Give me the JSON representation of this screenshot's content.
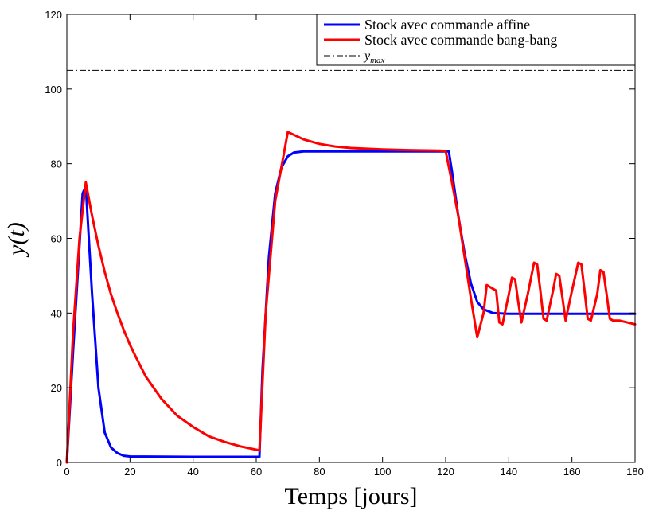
{
  "chart_data": {
    "type": "line",
    "xlabel": "Temps [jours]",
    "ylabel": "y(t)",
    "xlim": [
      0,
      180
    ],
    "ylim": [
      0,
      120
    ],
    "x_ticks": [
      0,
      20,
      40,
      60,
      80,
      100,
      120,
      140,
      160,
      180
    ],
    "y_ticks": [
      0,
      20,
      40,
      60,
      80,
      100,
      120
    ],
    "grid": false,
    "legend_position": "top-right",
    "series": [
      {
        "name": "Stock avec commande affine",
        "color": "#0000ff",
        "points": [
          [
            0,
            0
          ],
          [
            2,
            30
          ],
          [
            5,
            72
          ],
          [
            6,
            74
          ],
          [
            8,
            45
          ],
          [
            10,
            20
          ],
          [
            12,
            8
          ],
          [
            14,
            4
          ],
          [
            16,
            2.5
          ],
          [
            18,
            1.8
          ],
          [
            20,
            1.6
          ],
          [
            40,
            1.5
          ],
          [
            60,
            1.5
          ],
          [
            61,
            1.5
          ],
          [
            62,
            25
          ],
          [
            64,
            55
          ],
          [
            66,
            72
          ],
          [
            68,
            79
          ],
          [
            70,
            82
          ],
          [
            72,
            83
          ],
          [
            75,
            83.3
          ],
          [
            100,
            83.3
          ],
          [
            121,
            83.3
          ],
          [
            122,
            78
          ],
          [
            124,
            66
          ],
          [
            126,
            56
          ],
          [
            128,
            48
          ],
          [
            130,
            43
          ],
          [
            132,
            41
          ],
          [
            135,
            40
          ],
          [
            140,
            39.8
          ],
          [
            180,
            39.8
          ]
        ]
      },
      {
        "name": "Stock avec commande bang-bang",
        "color": "#ff0000",
        "points": [
          [
            0,
            0
          ],
          [
            2,
            35
          ],
          [
            4,
            60
          ],
          [
            6,
            75
          ],
          [
            8,
            66
          ],
          [
            10,
            58
          ],
          [
            12,
            51
          ],
          [
            14,
            45
          ],
          [
            16,
            40
          ],
          [
            18,
            35.5
          ],
          [
            20,
            31.5
          ],
          [
            22,
            28
          ],
          [
            25,
            23
          ],
          [
            30,
            17
          ],
          [
            35,
            12.5
          ],
          [
            40,
            9.5
          ],
          [
            45,
            7
          ],
          [
            50,
            5.5
          ],
          [
            55,
            4.3
          ],
          [
            60,
            3.4
          ],
          [
            61,
            3.2
          ],
          [
            63,
            40
          ],
          [
            66,
            70
          ],
          [
            70,
            88.5
          ],
          [
            75,
            86.5
          ],
          [
            80,
            85.3
          ],
          [
            85,
            84.6
          ],
          [
            90,
            84.2
          ],
          [
            100,
            83.8
          ],
          [
            110,
            83.6
          ],
          [
            118,
            83.5
          ],
          [
            120,
            83.4
          ],
          [
            122,
            75
          ],
          [
            124,
            66
          ],
          [
            126,
            55
          ],
          [
            128,
            44
          ],
          [
            130,
            33.5
          ],
          [
            132,
            40
          ],
          [
            133,
            47.5
          ],
          [
            135,
            46.5
          ],
          [
            136,
            46
          ],
          [
            137,
            37.5
          ],
          [
            138,
            37
          ],
          [
            140,
            45
          ],
          [
            141,
            49.5
          ],
          [
            142,
            49
          ],
          [
            143,
            43
          ],
          [
            144,
            37.5
          ],
          [
            146,
            45
          ],
          [
            148,
            53.5
          ],
          [
            149,
            53
          ],
          [
            150,
            46
          ],
          [
            151,
            38.5
          ],
          [
            152,
            38
          ],
          [
            154,
            46
          ],
          [
            155,
            50.5
          ],
          [
            156,
            50
          ],
          [
            157,
            44
          ],
          [
            158,
            38
          ],
          [
            160,
            46
          ],
          [
            162,
            53.5
          ],
          [
            163,
            53
          ],
          [
            164,
            46
          ],
          [
            165,
            38.5
          ],
          [
            166,
            38
          ],
          [
            168,
            45
          ],
          [
            169,
            51.5
          ],
          [
            170,
            51
          ],
          [
            171,
            45
          ],
          [
            172,
            38.5
          ],
          [
            173,
            38
          ],
          [
            175,
            38
          ],
          [
            180,
            37
          ]
        ]
      }
    ],
    "reference_lines": [
      {
        "name": "y_max",
        "label_base": "y",
        "label_sub": "max",
        "value": 105,
        "style": "dash-dot",
        "color": "#000000"
      }
    ]
  }
}
